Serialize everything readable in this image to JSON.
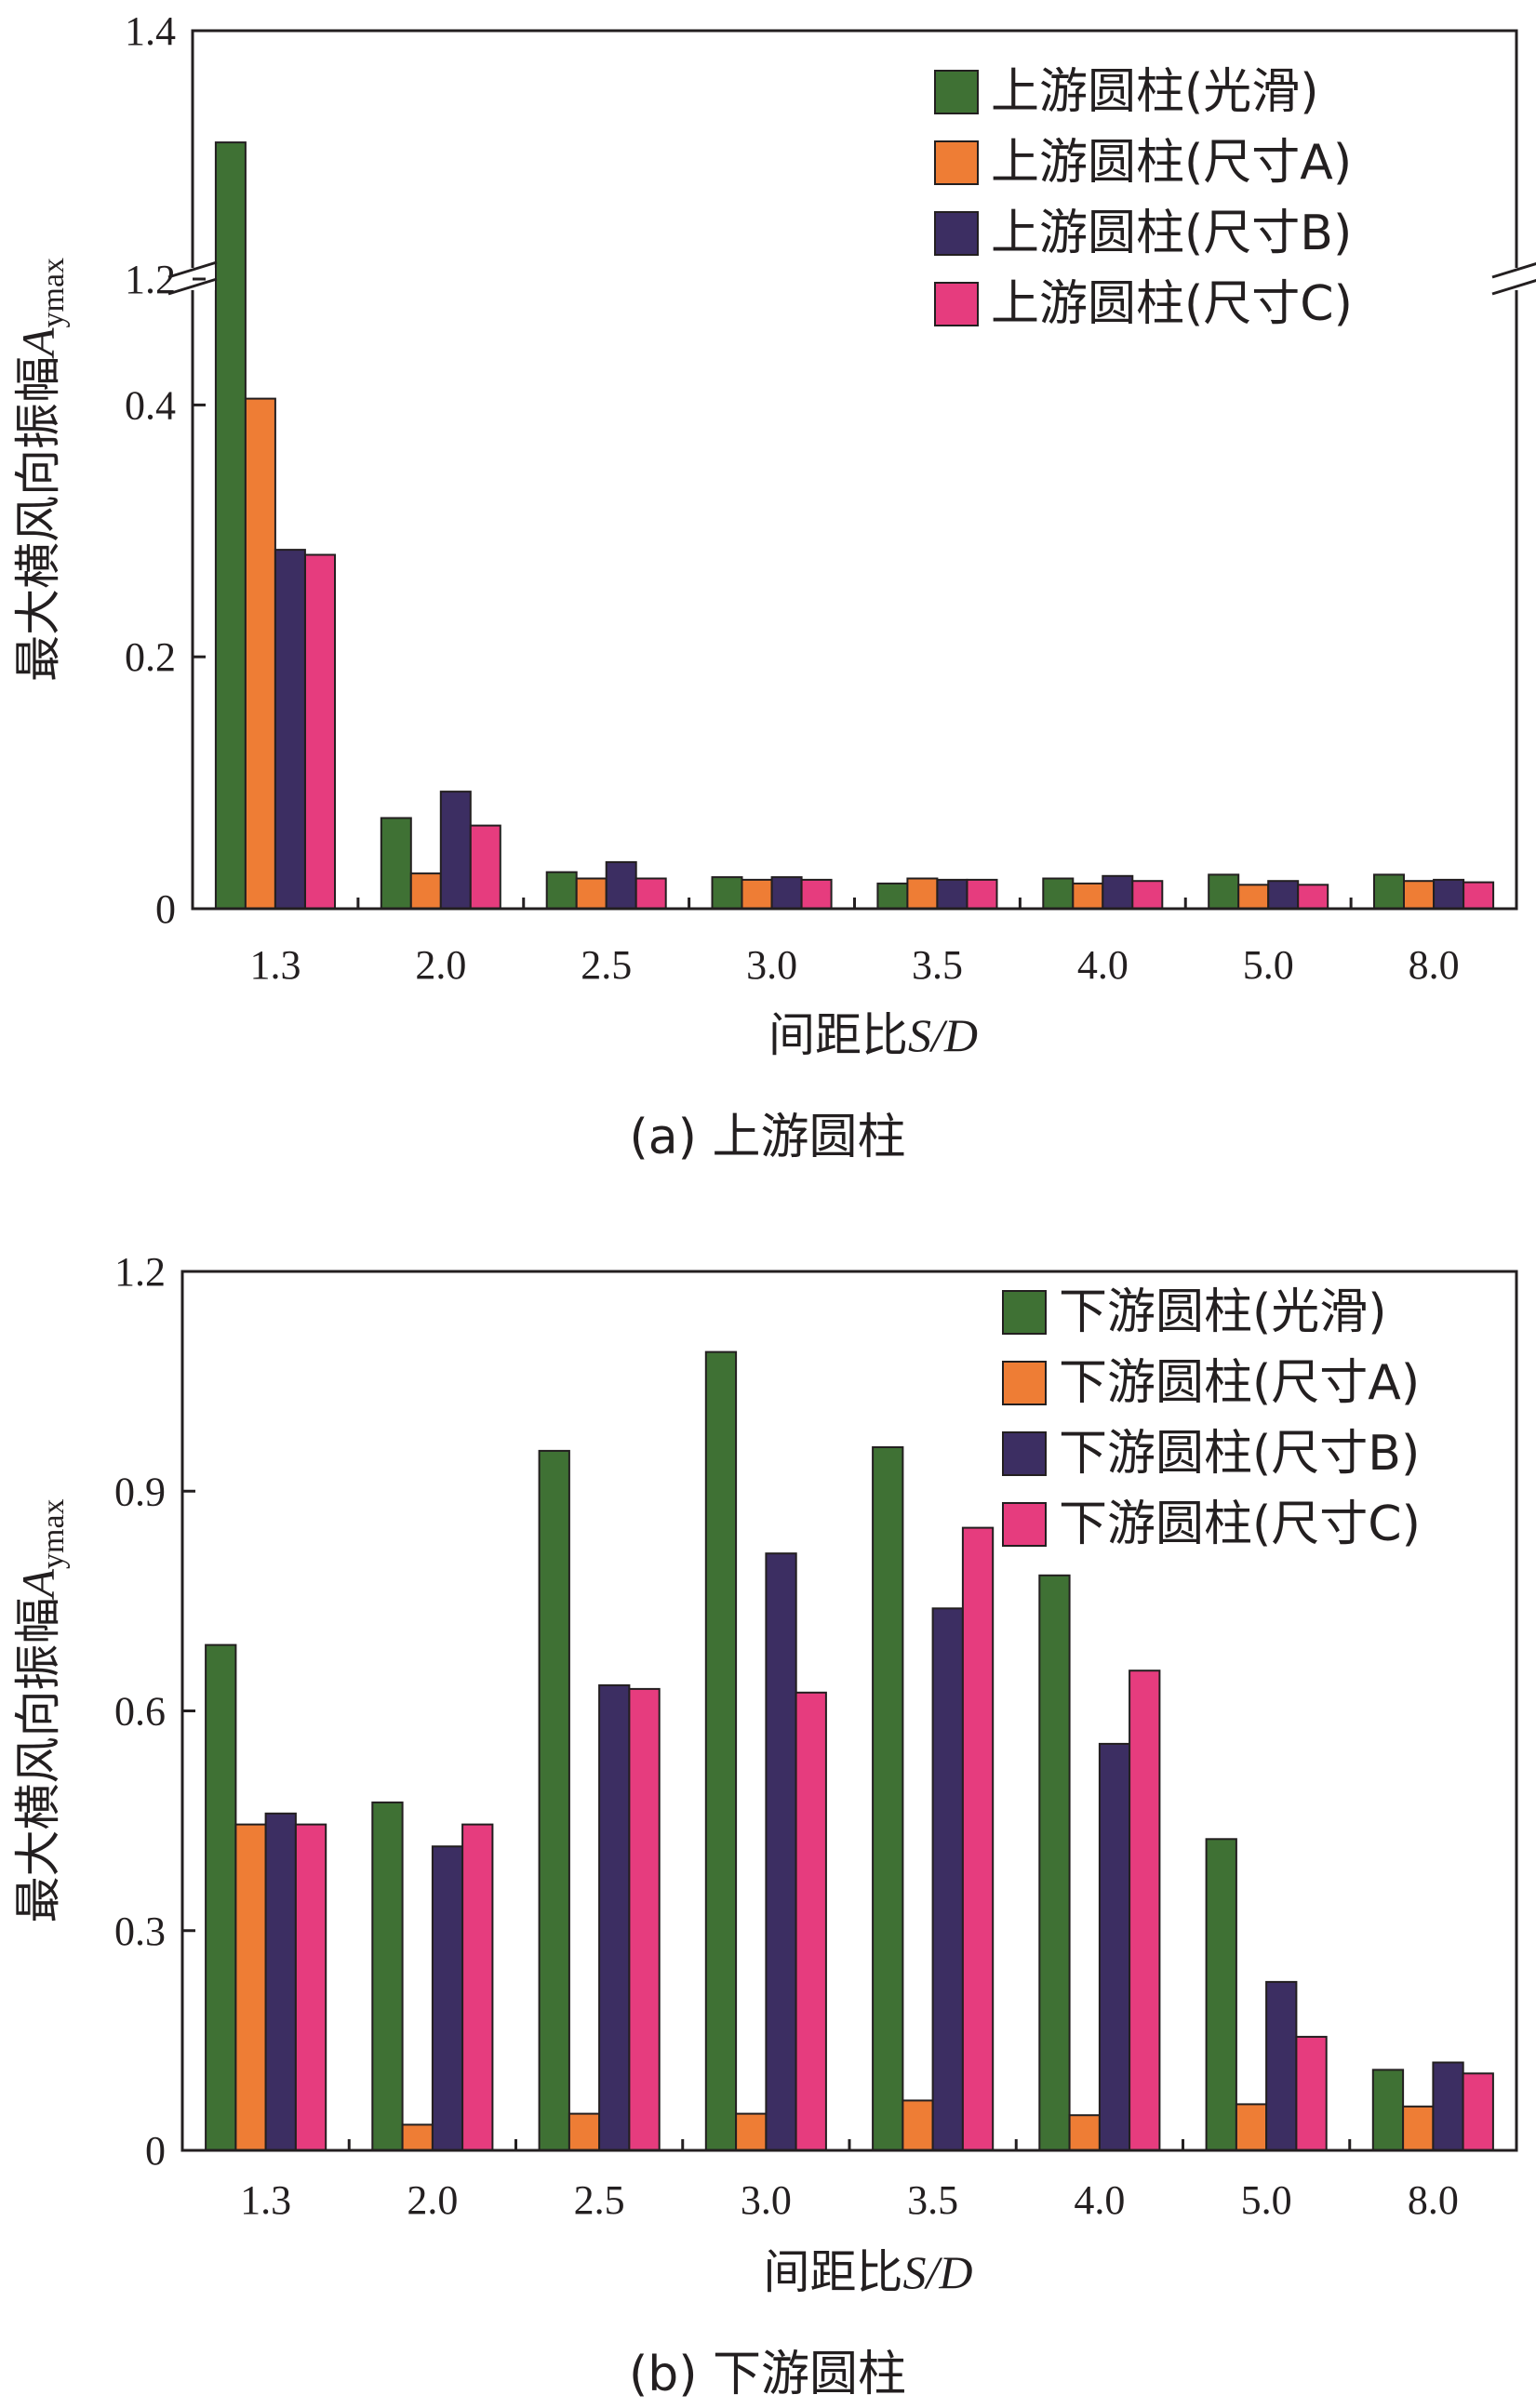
{
  "figure": {
    "title": "最大横风向振幅 vs 间距比",
    "captions": [
      "(a) 上游圆柱",
      "(b) 下游圆柱"
    ]
  },
  "colors": {
    "smooth": "#3f7134",
    "sizeA": "#ee7d35",
    "sizeB": "#3c2e62",
    "sizeC": "#e63c7e",
    "axis": "#231f20"
  },
  "chart_data": [
    {
      "type": "bar",
      "panel": "a",
      "title": "",
      "caption": "(a) 上游圆柱",
      "xlabel": "间距比",
      "xlabel_var": "S/D",
      "ylabel": "最大横风向振幅",
      "ylabel_var": "A",
      "ylabel_sub": "ymax",
      "categories": [
        "1.3",
        "2.0",
        "2.5",
        "3.0",
        "3.5",
        "4.0",
        "5.0",
        "8.0"
      ],
      "axis_break": true,
      "lower_range": [
        0,
        0.5
      ],
      "upper_range": [
        1.2,
        1.4
      ],
      "yticks_lower": [
        "0",
        "0.2",
        "0.4"
      ],
      "yticks_upper": [
        "1.2",
        "1.4"
      ],
      "legend_position": "top-right",
      "series": [
        {
          "name": "上游圆柱(光滑)",
          "color_key": "smooth",
          "values": [
            1.31,
            0.072,
            0.029,
            0.025,
            0.02,
            0.024,
            0.027,
            0.027
          ]
        },
        {
          "name": "上游圆柱(尺寸A)",
          "color_key": "sizeA",
          "values": [
            0.405,
            0.028,
            0.024,
            0.023,
            0.024,
            0.02,
            0.019,
            0.022
          ]
        },
        {
          "name": "上游圆柱(尺寸B)",
          "color_key": "sizeB",
          "values": [
            0.285,
            0.093,
            0.037,
            0.025,
            0.023,
            0.026,
            0.022,
            0.023
          ]
        },
        {
          "name": "上游圆柱(尺寸C)",
          "color_key": "sizeC",
          "values": [
            0.281,
            0.066,
            0.024,
            0.023,
            0.023,
            0.022,
            0.019,
            0.021
          ]
        }
      ]
    },
    {
      "type": "bar",
      "panel": "b",
      "title": "",
      "caption": "(b) 下游圆柱",
      "xlabel": "间距比",
      "xlabel_var": "S/D",
      "ylabel": "最大横风向振幅",
      "ylabel_var": "A",
      "ylabel_sub": "ymax",
      "categories": [
        "1.3",
        "2.0",
        "2.5",
        "3.0",
        "3.5",
        "4.0",
        "5.0",
        "8.0"
      ],
      "ylim": [
        0,
        1.2
      ],
      "yticks": [
        "0",
        "0.3",
        "0.6",
        "0.9",
        "1.2"
      ],
      "legend_position": "top-right",
      "series": [
        {
          "name": "下游圆柱(光滑)",
          "color_key": "smooth",
          "values": [
            0.69,
            0.475,
            0.955,
            1.09,
            0.96,
            0.785,
            0.425,
            0.11
          ]
        },
        {
          "name": "下游圆柱(尺寸A)",
          "color_key": "sizeA",
          "values": [
            0.445,
            0.035,
            0.05,
            0.05,
            0.068,
            0.048,
            0.063,
            0.06
          ]
        },
        {
          "name": "下游圆柱(尺寸B)",
          "color_key": "sizeB",
          "values": [
            0.46,
            0.415,
            0.635,
            0.815,
            0.74,
            0.555,
            0.23,
            0.12
          ]
        },
        {
          "name": "下游圆柱(尺寸C)",
          "color_key": "sizeC",
          "values": [
            0.445,
            0.445,
            0.63,
            0.625,
            0.85,
            0.655,
            0.155,
            0.105
          ]
        }
      ]
    }
  ]
}
